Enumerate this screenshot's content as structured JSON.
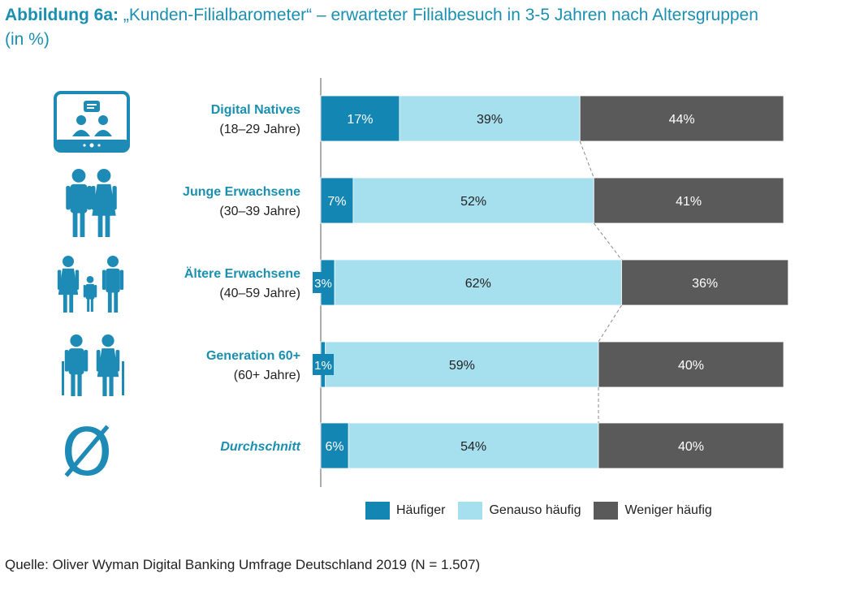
{
  "title": {
    "prefix": "Abbildung 6a:",
    "text": "„Kunden-Filialbarometer“ – erwarteter Filialbesuch in 3-5 Jahren nach Altersgruppen",
    "subtitle": "(in %)"
  },
  "source": "Quelle: Oliver Wyman Digital Banking Umfrage Deutschland 2019 (N = 1.507)",
  "colors": {
    "haeufiger": "#1486b3",
    "genauso": "#a6e0ee",
    "weniger": "#5a5a5a",
    "label_blue": "#1a8fb0",
    "icon": "#1d8bb5"
  },
  "chart_data": {
    "type": "bar",
    "orientation": "horizontal",
    "stacked": true,
    "categories": [
      {
        "name": "Digital Natives",
        "sub": "(18–29 Jahre)",
        "icon": "video-call-icon"
      },
      {
        "name": "Junge Erwachsene",
        "sub": "(30–39 Jahre)",
        "icon": "couple-icon"
      },
      {
        "name": "Ältere Erwachsene",
        "sub": "(40–59 Jahre)",
        "icon": "family-icon"
      },
      {
        "name": "Generation 60+",
        "sub": "(60+ Jahre)",
        "icon": "elderly-icon"
      },
      {
        "name": "Durchschnitt",
        "sub": "",
        "icon": "average-symbol-icon"
      }
    ],
    "series": [
      {
        "name": "Häufiger",
        "values": [
          17,
          7,
          3,
          1,
          6
        ],
        "labels": [
          "17%",
          "7%",
          "3%",
          "1%",
          "6%"
        ]
      },
      {
        "name": "Genauso häufig",
        "values": [
          39,
          52,
          62,
          59,
          54
        ],
        "labels": [
          "39%",
          "52%",
          "62%",
          "59%",
          "54%"
        ]
      },
      {
        "name": "Weniger häufig",
        "values": [
          44,
          41,
          36,
          40,
          40
        ],
        "labels": [
          "44%",
          "41%",
          "36%",
          "40%",
          "40%"
        ]
      }
    ],
    "xlim": [
      0,
      100
    ],
    "legend_position": "bottom",
    "average_symbol": "Ø"
  }
}
